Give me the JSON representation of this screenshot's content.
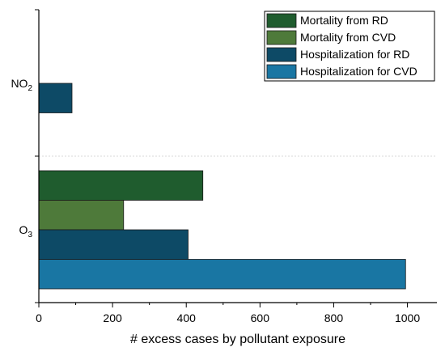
{
  "chart_data": {
    "type": "bar",
    "orientation": "horizontal",
    "categories": [
      "NO₂",
      "O₃"
    ],
    "category_parts": [
      {
        "base": "NO",
        "sub": "2"
      },
      {
        "base": "O",
        "sub": "3"
      }
    ],
    "series": [
      {
        "name": "Mortality from RD",
        "color": "#1f5c2e",
        "values": [
          0,
          445
        ]
      },
      {
        "name": "Mortality from CVD",
        "color": "#4e7a3a",
        "values": [
          0,
          230
        ]
      },
      {
        "name": "Hospitalization for RD",
        "color": "#0d4a66",
        "values": [
          90,
          405
        ]
      },
      {
        "name": "Hospitalization for CVD",
        "color": "#1976a3",
        "values": [
          0,
          995
        ]
      }
    ],
    "xlabel": "# excess cases by pollutant exposure",
    "ylabel": "",
    "title": "",
    "xlim": [
      0,
      1080
    ],
    "xticks": [
      0,
      200,
      400,
      600,
      800,
      1000
    ],
    "grid": false,
    "legend_position": "top-right"
  }
}
